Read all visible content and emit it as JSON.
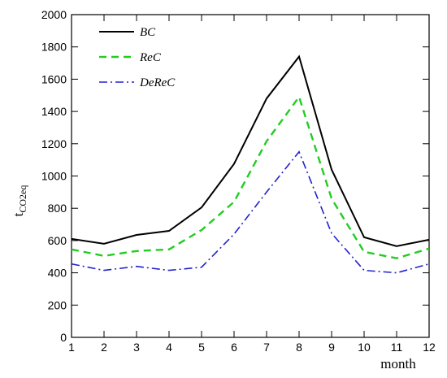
{
  "chart_data": {
    "type": "line",
    "xlabel": "month",
    "ylabel": "tCO2eq",
    "ylabel_parts": {
      "main": "t",
      "sub": "CO2eq"
    },
    "x": [
      1,
      2,
      3,
      4,
      5,
      6,
      7,
      8,
      9,
      10,
      11,
      12
    ],
    "xlim": [
      1,
      12
    ],
    "ylim": [
      0,
      2000
    ],
    "x_ticks": [
      1,
      2,
      3,
      4,
      5,
      6,
      7,
      8,
      9,
      10,
      11,
      12
    ],
    "y_ticks": [
      0,
      200,
      400,
      600,
      800,
      1000,
      1200,
      1400,
      1600,
      1800,
      2000
    ],
    "grid": false,
    "legend_position": "top-left",
    "series": [
      {
        "name": "BC",
        "color": "#000000",
        "dash": "solid",
        "values": [
          610,
          580,
          635,
          660,
          805,
          1075,
          1480,
          1740,
          1040,
          620,
          565,
          605
        ]
      },
      {
        "name": "ReC",
        "color": "#22cc22",
        "dash": "dashed",
        "values": [
          545,
          505,
          535,
          545,
          665,
          840,
          1215,
          1490,
          860,
          530,
          490,
          550
        ]
      },
      {
        "name": "DeReC",
        "color": "#2222cc",
        "dash": "dash-dot",
        "values": [
          455,
          415,
          440,
          415,
          435,
          640,
          900,
          1150,
          645,
          415,
          400,
          455
        ]
      }
    ]
  }
}
